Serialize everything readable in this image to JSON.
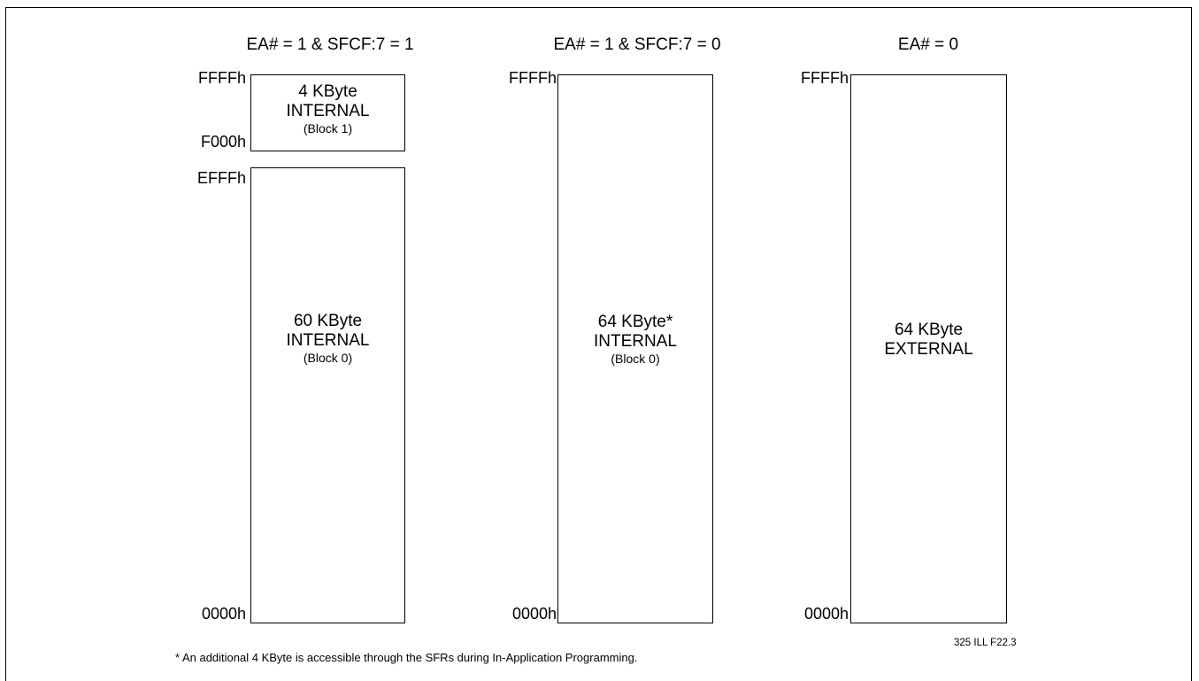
{
  "columns": [
    {
      "title": "EA# = 1 & SFCF:7 = 1",
      "addresses": [
        "FFFFh",
        "F000h",
        "EFFFh",
        "0000h"
      ],
      "blocks": [
        {
          "main": [
            "4 KByte",
            "INTERNAL"
          ],
          "sub": "(Block 1)"
        },
        {
          "main": [
            "60 KByte",
            "INTERNAL"
          ],
          "sub": "(Block 0)"
        }
      ]
    },
    {
      "title": "EA# = 1 & SFCF:7 = 0",
      "addresses": [
        "FFFFh",
        "0000h"
      ],
      "blocks": [
        {
          "main": [
            "64 KByte*",
            "INTERNAL"
          ],
          "sub": "(Block 0)"
        }
      ]
    },
    {
      "title": "EA# = 0",
      "addresses": [
        "FFFFh",
        "0000h"
      ],
      "blocks": [
        {
          "main": [
            "64 KByte",
            "EXTERNAL"
          ],
          "sub": ""
        }
      ]
    }
  ],
  "footnote": "* An additional 4 KByte is accessible through the SFRs during In-Application Programming.",
  "figure_ref": "325 ILL F22.3"
}
